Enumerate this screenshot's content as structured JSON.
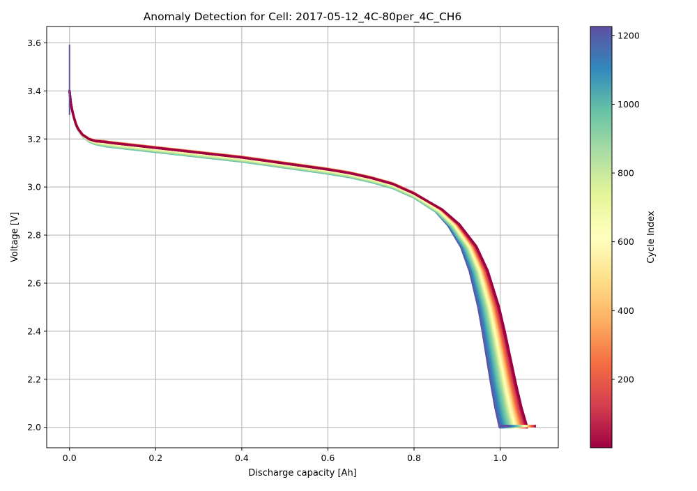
{
  "chart_data": {
    "type": "line",
    "title": "Anomaly Detection for Cell: 2017-05-12_4C-80per_4C_CH6",
    "xlabel": "Discharge capacity [Ah]",
    "ylabel": "Voltage [V]",
    "xlim": [
      -0.053,
      1.135
    ],
    "ylim": [
      1.915,
      3.668
    ],
    "xticks": [
      0.0,
      0.2,
      0.4,
      0.6,
      0.8,
      1.0
    ],
    "xtick_labels": [
      "0.0",
      "0.2",
      "0.4",
      "0.6",
      "0.8",
      "1.0"
    ],
    "yticks": [
      2.0,
      2.2,
      2.4,
      2.6,
      2.8,
      3.0,
      3.2,
      3.4,
      3.6
    ],
    "ytick_labels": [
      "2.0",
      "2.2",
      "2.4",
      "2.6",
      "2.8",
      "3.0",
      "3.2",
      "3.4",
      "3.6"
    ],
    "grid": true,
    "colormap": "Spectral",
    "colorbar": {
      "label": "Cycle Index",
      "range": [
        1,
        1226
      ],
      "ticks": [
        200,
        400,
        600,
        800,
        1000,
        1200
      ],
      "tick_labels": [
        "200",
        "400",
        "600",
        "800",
        "1000",
        "1200"
      ],
      "colors": [
        "#9e0142",
        "#d53e4f",
        "#f46d43",
        "#fdae61",
        "#fee08b",
        "#ffffbf",
        "#e6f598",
        "#abdda4",
        "#66c2a5",
        "#3288bd",
        "#5e4fa2"
      ]
    },
    "curve_shape": {
      "x": [
        0.0,
        0.003,
        0.006,
        0.01,
        0.015,
        0.02,
        0.03,
        0.045,
        0.06,
        0.08,
        0.1,
        0.15,
        0.2,
        0.3,
        0.4,
        0.5,
        0.6,
        0.65,
        0.7,
        0.75,
        0.8,
        0.85,
        0.88,
        0.91,
        0.93,
        0.95,
        0.96,
        0.97,
        0.98,
        0.99,
        1.0
      ],
      "y": [
        3.4,
        3.35,
        3.32,
        3.29,
        3.26,
        3.24,
        3.215,
        3.195,
        3.185,
        3.18,
        3.175,
        3.165,
        3.155,
        3.135,
        3.115,
        3.09,
        3.065,
        3.05,
        3.03,
        3.005,
        2.965,
        2.9,
        2.84,
        2.75,
        2.65,
        2.5,
        2.4,
        2.29,
        2.18,
        2.08,
        2.0
      ]
    },
    "series": [
      {
        "cycle": 1,
        "end_capacity": 1.063,
        "plateau_offset": 0.008
      },
      {
        "cycle": 25,
        "end_capacity": 1.062,
        "plateau_offset": 0.008
      },
      {
        "cycle": 50,
        "end_capacity": 1.061,
        "plateau_offset": 0.008
      },
      {
        "cycle": 75,
        "end_capacity": 1.06,
        "plateau_offset": 0.008
      },
      {
        "cycle": 100,
        "end_capacity": 1.059,
        "plateau_offset": 0.008
      },
      {
        "cycle": 125,
        "end_capacity": 1.058,
        "plateau_offset": 0.008
      },
      {
        "cycle": 150,
        "end_capacity": 1.057,
        "plateau_offset": 0.009
      },
      {
        "cycle": 175,
        "end_capacity": 1.055,
        "plateau_offset": 0.009
      },
      {
        "cycle": 200,
        "end_capacity": 1.054,
        "plateau_offset": 0.009
      },
      {
        "cycle": 225,
        "end_capacity": 1.053,
        "plateau_offset": 0.009
      },
      {
        "cycle": 250,
        "end_capacity": 1.052,
        "plateau_offset": 0.009
      },
      {
        "cycle": 275,
        "end_capacity": 1.051,
        "plateau_offset": 0.01
      },
      {
        "cycle": 300,
        "end_capacity": 1.05,
        "plateau_offset": 0.01
      },
      {
        "cycle": 325,
        "end_capacity": 1.049,
        "plateau_offset": 0.01
      },
      {
        "cycle": 350,
        "end_capacity": 1.048,
        "plateau_offset": 0.01
      },
      {
        "cycle": 375,
        "end_capacity": 1.047,
        "plateau_offset": 0.011
      },
      {
        "cycle": 400,
        "end_capacity": 1.046,
        "plateau_offset": 0.011
      },
      {
        "cycle": 425,
        "end_capacity": 1.045,
        "plateau_offset": 0.011
      },
      {
        "cycle": 450,
        "end_capacity": 1.044,
        "plateau_offset": 0.011
      },
      {
        "cycle": 475,
        "end_capacity": 1.043,
        "plateau_offset": 0.01
      },
      {
        "cycle": 500,
        "end_capacity": 1.042,
        "plateau_offset": 0.01
      },
      {
        "cycle": 525,
        "end_capacity": 1.041,
        "plateau_offset": 0.01
      },
      {
        "cycle": 550,
        "end_capacity": 1.04,
        "plateau_offset": 0.009
      },
      {
        "cycle": 575,
        "end_capacity": 1.039,
        "plateau_offset": 0.008
      },
      {
        "cycle": 600,
        "end_capacity": 1.038,
        "plateau_offset": 0.007
      },
      {
        "cycle": 625,
        "end_capacity": 1.037,
        "plateau_offset": 0.006
      },
      {
        "cycle": 650,
        "end_capacity": 1.036,
        "plateau_offset": 0.005
      },
      {
        "cycle": 675,
        "end_capacity": 1.035,
        "plateau_offset": 0.004
      },
      {
        "cycle": 700,
        "end_capacity": 1.034,
        "plateau_offset": 0.003
      },
      {
        "cycle": 725,
        "end_capacity": 1.033,
        "plateau_offset": 0.002
      },
      {
        "cycle": 750,
        "end_capacity": 1.032,
        "plateau_offset": 0.001
      },
      {
        "cycle": 775,
        "end_capacity": 1.031,
        "plateau_offset": 0.0
      },
      {
        "cycle": 800,
        "end_capacity": 1.03,
        "plateau_offset": -0.001
      },
      {
        "cycle": 825,
        "end_capacity": 1.029,
        "plateau_offset": -0.002
      },
      {
        "cycle": 850,
        "end_capacity": 1.028,
        "plateau_offset": -0.003
      },
      {
        "cycle": 875,
        "end_capacity": 1.026,
        "plateau_offset": -0.004
      },
      {
        "cycle": 900,
        "end_capacity": 1.025,
        "plateau_offset": -0.005
      },
      {
        "cycle": 925,
        "end_capacity": 1.023,
        "plateau_offset": -0.006
      },
      {
        "cycle": 950,
        "end_capacity": 1.021,
        "plateau_offset": -0.007
      },
      {
        "cycle": 975,
        "end_capacity": 1.019,
        "plateau_offset": -0.008
      },
      {
        "cycle": 1000,
        "end_capacity": 1.017,
        "plateau_offset": -0.009
      },
      {
        "cycle": 1025,
        "end_capacity": 1.015,
        "plateau_offset": -0.008
      },
      {
        "cycle": 1050,
        "end_capacity": 1.013,
        "plateau_offset": -0.007
      },
      {
        "cycle": 1075,
        "end_capacity": 1.011,
        "plateau_offset": -0.006
      },
      {
        "cycle": 1100,
        "end_capacity": 1.009,
        "plateau_offset": -0.005
      },
      {
        "cycle": 1125,
        "end_capacity": 1.007,
        "plateau_offset": -0.004
      },
      {
        "cycle": 1150,
        "end_capacity": 1.005,
        "plateau_offset": -0.003
      },
      {
        "cycle": 1175,
        "end_capacity": 1.003,
        "plateau_offset": -0.002
      },
      {
        "cycle": 1200,
        "end_capacity": 1.001,
        "plateau_offset": -0.001
      },
      {
        "cycle": 1226,
        "end_capacity": 0.999,
        "plateau_offset": -0.001
      }
    ],
    "spike": {
      "x": 0.0,
      "y_top": 3.592,
      "y_bottom": 3.3
    }
  }
}
